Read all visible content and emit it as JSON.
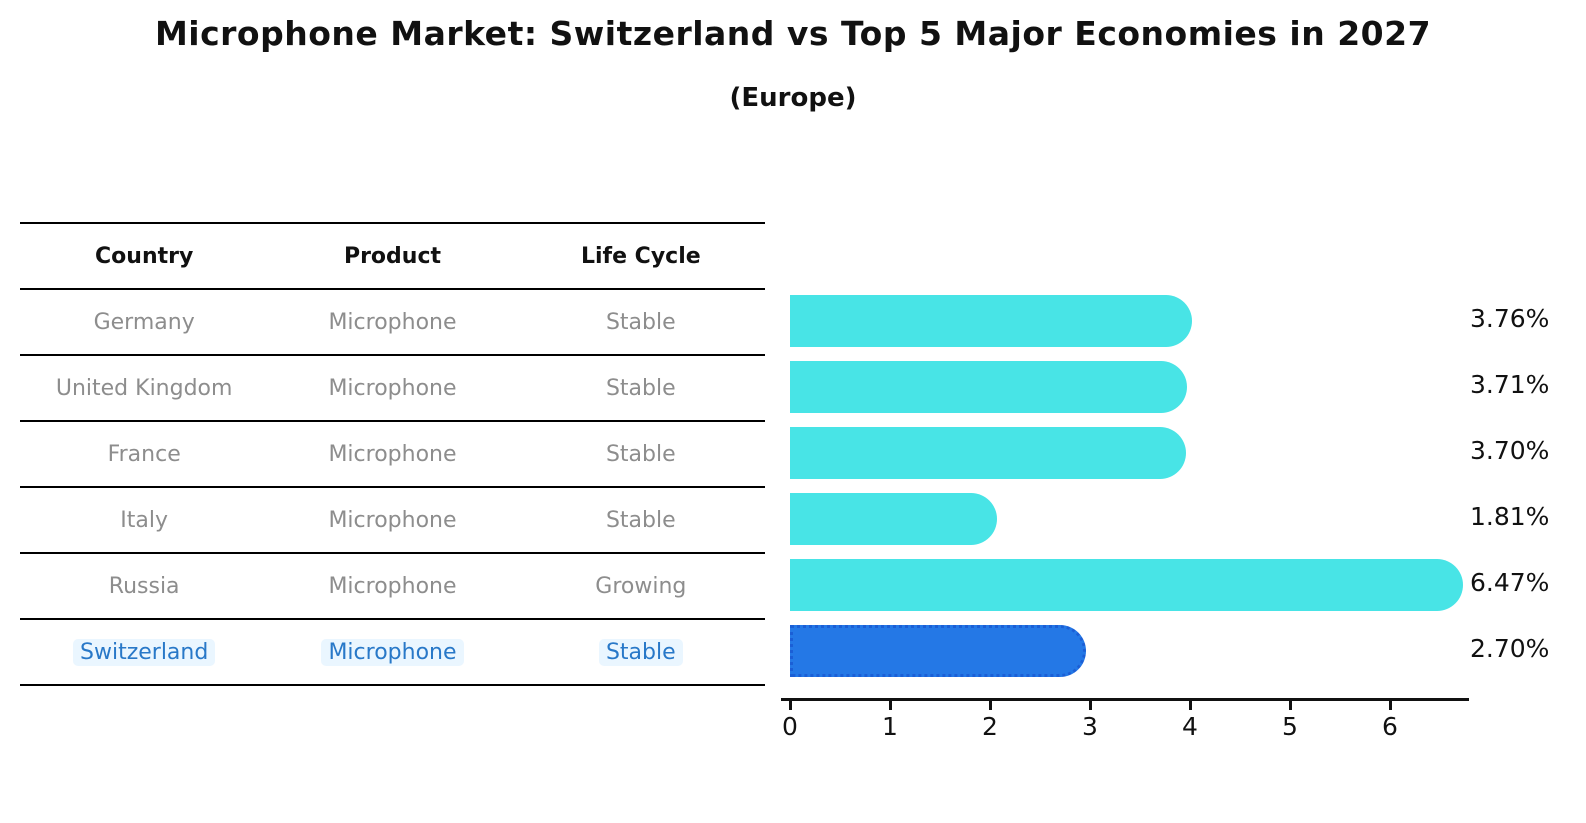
{
  "title": "Microphone Market: Switzerland vs Top 5 Major Economies in 2027",
  "subtitle": "(Europe)",
  "table": {
    "headers": [
      "Country",
      "Product",
      "Life Cycle"
    ],
    "rows": [
      {
        "country": "Germany",
        "product": "Microphone",
        "life_cycle": "Stable",
        "highlight": false
      },
      {
        "country": "United Kingdom",
        "product": "Microphone",
        "life_cycle": "Stable",
        "highlight": false
      },
      {
        "country": "France",
        "product": "Microphone",
        "life_cycle": "Stable",
        "highlight": false
      },
      {
        "country": "Italy",
        "product": "Microphone",
        "life_cycle": "Stable",
        "highlight": false
      },
      {
        "country": "Russia",
        "product": "Microphone",
        "life_cycle": "Growing",
        "highlight": false
      },
      {
        "country": "Switzerland",
        "product": "Microphone",
        "life_cycle": "Stable",
        "highlight": true
      }
    ]
  },
  "chart_data": {
    "type": "bar",
    "orientation": "horizontal",
    "title": "Microphone Market: Switzerland vs Top 5 Major Economies in 2027 (Europe)",
    "categories": [
      "Germany",
      "United Kingdom",
      "France",
      "Italy",
      "Russia",
      "Switzerland"
    ],
    "values": [
      3.76,
      3.71,
      3.7,
      1.81,
      6.47,
      2.7
    ],
    "value_labels": [
      "3.76%",
      "3.71%",
      "3.70%",
      "1.81%",
      "6.47%",
      "2.70%"
    ],
    "life_cycle": [
      "Stable",
      "Stable",
      "Stable",
      "Stable",
      "Growing",
      "Stable"
    ],
    "xlim": [
      0,
      6.8
    ],
    "xticks": [
      0,
      1,
      2,
      3,
      4,
      5,
      6
    ],
    "grid": false,
    "legend": null,
    "bar_color": "#48E4E6",
    "highlight_bar_color": "#2478E6",
    "highlight_border_color": "#1b5fd6",
    "highlight_index": 5,
    "highlight_text_color": "#2878c8"
  }
}
